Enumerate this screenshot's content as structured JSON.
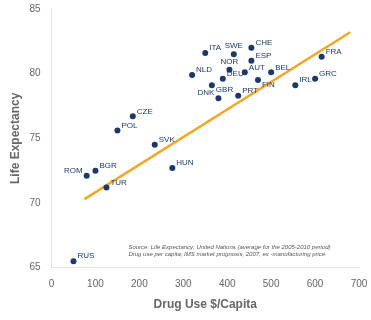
{
  "chart_data": {
    "type": "scatter",
    "xlabel": "Drug Use $/Capita",
    "ylabel": "Life Expectancy",
    "xlim": [
      0,
      700
    ],
    "ylim": [
      65,
      85
    ],
    "xticks": [
      0,
      100,
      200,
      300,
      400,
      500,
      600,
      700
    ],
    "yticks": [
      65,
      70,
      75,
      80,
      85
    ],
    "grid": false,
    "series": [
      {
        "type": "scatter",
        "color": "#1a3a6b",
        "x": [
          50,
          80,
          100,
          125,
          150,
          185,
          235,
          275,
          320,
          350,
          365,
          380,
          390,
          405,
          415,
          425,
          440,
          455,
          455,
          470,
          500,
          555,
          600,
          615
        ],
        "values": [
          65.5,
          72.1,
          72.5,
          71.2,
          75.6,
          76.7,
          74.5,
          72.7,
          79.9,
          81.6,
          79.1,
          78.1,
          79.6,
          80.3,
          81.5,
          78.3,
          80.1,
          82.0,
          81.0,
          79.5,
          80.1,
          79.1,
          79.6,
          81.3
        ],
        "labels": [
          "RUS",
          "ROM",
          "BGR",
          "TUR",
          "POL",
          "CZE",
          "SVK",
          "HUN",
          "NLD",
          "ITA",
          "GBR",
          "DNK",
          "DEU",
          "NOR",
          "SWE",
          "PRT",
          "AUT",
          "CHE",
          "ESP",
          "FIN",
          "BEL",
          "IRL",
          "GRC",
          "FRA"
        ]
      },
      {
        "type": "line",
        "color": "#f5a623",
        "x": [
          75,
          680
        ],
        "values": [
          70.3,
          83.2
        ]
      }
    ],
    "annotations": [
      {
        "text": "Source: Life Expectancy; United Nations (average for the 2005-2010 period)\nDrug use per capita; IMS market prognosis, 2007, ex -manufacturing price.",
        "x": 175,
        "y": 65.8
      }
    ]
  }
}
